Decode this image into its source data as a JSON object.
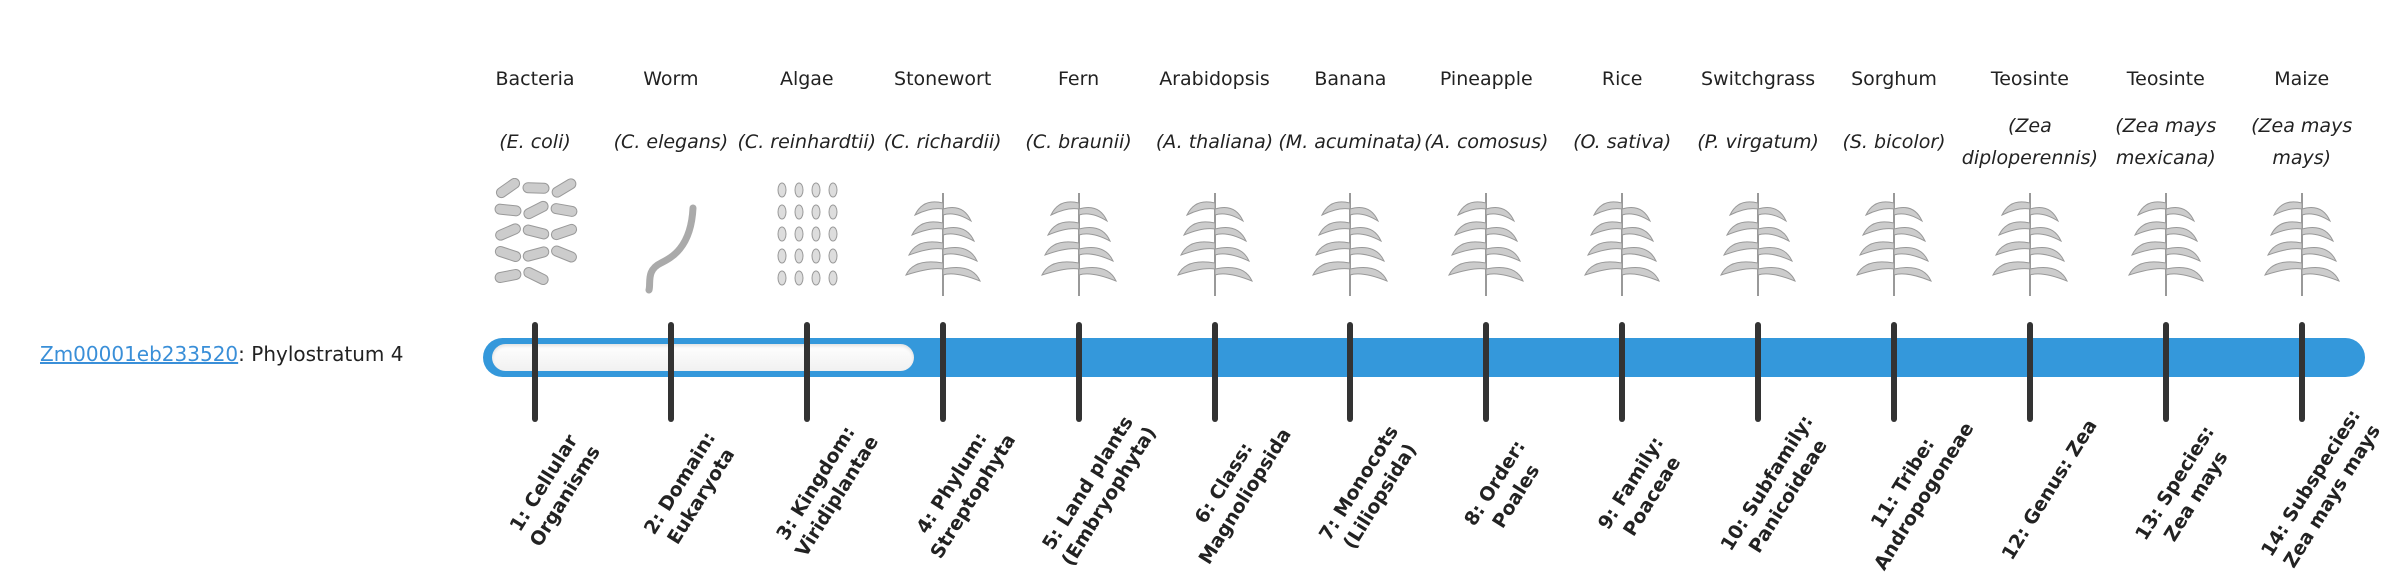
{
  "gene": {
    "id": "Zm00001eb233520",
    "suffix": ": Phylostratum 4",
    "phylostratum": 4
  },
  "colors": {
    "bar": "#3498db",
    "link": "#3a8fd8",
    "tick": "#333333"
  },
  "organisms": [
    {
      "common": "Bacteria",
      "latin": "(E. coli)",
      "icon": "bacteria-illustration",
      "stratum": "1: Cellular Organisms"
    },
    {
      "common": "Worm",
      "latin": "(C. elegans)",
      "icon": "worm-illustration",
      "stratum": "2: Domain: Eukaryota"
    },
    {
      "common": "Algae",
      "latin": "(C. reinhardtii)",
      "icon": "algae-illustration",
      "stratum": "3: Kingdom: Viridiplantae"
    },
    {
      "common": "Stonewort",
      "latin": "(C. richardii)",
      "icon": "stonewort-illustration",
      "stratum": "4: Phylum: Streptophyta"
    },
    {
      "common": "Fern",
      "latin": "(C. braunii)",
      "icon": "fern-illustration",
      "stratum": "5: Land plants (Embryophyta)"
    },
    {
      "common": "Arabidopsis",
      "latin": "(A. thaliana)",
      "icon": "arabidopsis-illustration",
      "stratum": "6: Class: Magnoliopsida"
    },
    {
      "common": "Banana",
      "latin": "(M. acuminata)",
      "icon": "banana-illustration",
      "stratum": "7: Monocots (Liliopsida)"
    },
    {
      "common": "Pineapple",
      "latin": "(A. comosus)",
      "icon": "pineapple-illustration",
      "stratum": "8: Order: Poales"
    },
    {
      "common": "Rice",
      "latin": "(O. sativa)",
      "icon": "rice-illustration",
      "stratum": "9: Family: Poaceae"
    },
    {
      "common": "Switchgrass",
      "latin": "(P. virgatum)",
      "icon": "switchgrass-illustration",
      "stratum": "10: Subfamily: Panicoideae"
    },
    {
      "common": "Sorghum",
      "latin": "(S. bicolor)",
      "icon": "sorghum-illustration",
      "stratum": "11: Tribe: Andropogoneae"
    },
    {
      "common": "Teosinte",
      "latin": "(Zea diploperennis)",
      "icon": "teosinte-illustration",
      "stratum": "12: Genus: Zea"
    },
    {
      "common": "Teosinte",
      "latin": "(Zea mays mexicana)",
      "icon": "teosinte-illustration",
      "stratum": "13: Species: Zea mays"
    },
    {
      "common": "Maize",
      "latin": "(Zea mays mays)",
      "icon": "maize-illustration",
      "stratum": "14: Subspecies: Zea mays mays"
    }
  ]
}
